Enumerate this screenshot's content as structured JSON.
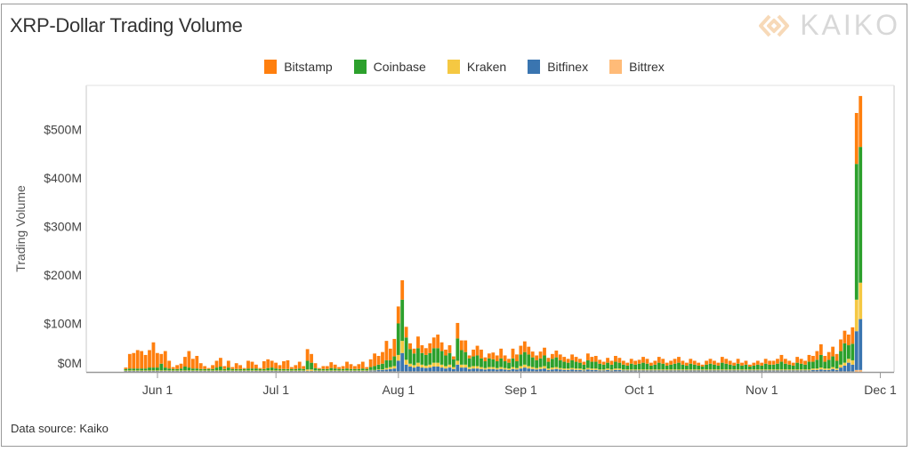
{
  "title": "XRP-Dollar Trading Volume",
  "logo_text": "KAIKO",
  "source": "Data source: Kaiko",
  "chart_data": {
    "type": "bar",
    "stacked": true,
    "title": "XRP-Dollar Trading Volume",
    "xlabel": "",
    "ylabel": "Trading Volume",
    "start_date": "May 24",
    "end_date": "Nov 26",
    "x_ticks": [
      {
        "label": "Jun 1",
        "day": 8
      },
      {
        "label": "Jul 1",
        "day": 38
      },
      {
        "label": "Aug 1",
        "day": 69
      },
      {
        "label": "Sep 1",
        "day": 100
      },
      {
        "label": "Oct 1",
        "day": 130
      },
      {
        "label": "Nov 1",
        "day": 161
      },
      {
        "label": "Dec 1",
        "day": 191
      }
    ],
    "y_ticks": [
      {
        "label": "$0M",
        "value": 0
      },
      {
        "label": "$100M",
        "value": 100
      },
      {
        "label": "$200M",
        "value": 200
      },
      {
        "label": "$300M",
        "value": 300
      },
      {
        "label": "$400M",
        "value": 400
      },
      {
        "label": "$500M",
        "value": 500
      }
    ],
    "ylim": [
      0,
      590
    ],
    "units": "USD millions",
    "legend_position": "top-center",
    "grid": false,
    "series": [
      {
        "name": "Bitstamp",
        "color": "#ff7f0e",
        "values": [
          3,
          30,
          32,
          38,
          36,
          28,
          36,
          52,
          30,
          20,
          34,
          16,
          4,
          8,
          10,
          20,
          34,
          20,
          26,
          12,
          6,
          2,
          8,
          14,
          18,
          6,
          14,
          4,
          12,
          8,
          2,
          16,
          14,
          8,
          2,
          16,
          18,
          14,
          12,
          8,
          16,
          18,
          4,
          8,
          14,
          6,
          24,
          18,
          10,
          2,
          6,
          6,
          12,
          8,
          4,
          6,
          14,
          10,
          6,
          10,
          14,
          4,
          16,
          26,
          18,
          24,
          40,
          24,
          36,
          35,
          40,
          22,
          12,
          10,
          24,
          16,
          14,
          20,
          22,
          28,
          18,
          12,
          16,
          6,
          32,
          20,
          24,
          6,
          14,
          20,
          18,
          8,
          10,
          14,
          12,
          20,
          12,
          8,
          20,
          14,
          18,
          22,
          16,
          12,
          10,
          14,
          16,
          8,
          10,
          14,
          12,
          10,
          8,
          12,
          10,
          8,
          6,
          14,
          10,
          12,
          8,
          6,
          10,
          8,
          12,
          10,
          8,
          6,
          10,
          8,
          8,
          12,
          10,
          6,
          8,
          12,
          10,
          6,
          8,
          10,
          12,
          8,
          6,
          10,
          8,
          6,
          4,
          8,
          10,
          8,
          6,
          12,
          10,
          8,
          6,
          10,
          6,
          8,
          4,
          6,
          8,
          6,
          10,
          8,
          8,
          10,
          14,
          10,
          8,
          6,
          12,
          10,
          8,
          14,
          12,
          18,
          22,
          12,
          16,
          20,
          14,
          24,
          26,
          22,
          34,
          105,
          105
        ]
      },
      {
        "name": "Coinbase",
        "color": "#2ca02c",
        "values": [
          3,
          4,
          4,
          4,
          4,
          4,
          6,
          6,
          6,
          14,
          6,
          4,
          3,
          3,
          4,
          8,
          6,
          4,
          4,
          3,
          3,
          3,
          3,
          6,
          8,
          3,
          6,
          3,
          3,
          3,
          3,
          4,
          4,
          4,
          3,
          3,
          5,
          6,
          4,
          3,
          3,
          3,
          3,
          3,
          4,
          3,
          18,
          14,
          5,
          3,
          3,
          3,
          5,
          4,
          3,
          3,
          4,
          3,
          3,
          3,
          4,
          3,
          6,
          8,
          10,
          12,
          16,
          14,
          20,
          65,
          85,
          46,
          30,
          24,
          30,
          24,
          22,
          24,
          30,
          30,
          28,
          22,
          24,
          16,
          46,
          30,
          26,
          18,
          20,
          22,
          18,
          14,
          18,
          16,
          14,
          18,
          14,
          12,
          18,
          14,
          24,
          26,
          24,
          20,
          16,
          18,
          22,
          14,
          18,
          20,
          16,
          14,
          12,
          16,
          14,
          12,
          10,
          16,
          14,
          14,
          12,
          10,
          12,
          10,
          14,
          12,
          10,
          8,
          12,
          10,
          12,
          14,
          12,
          8,
          10,
          14,
          12,
          8,
          10,
          12,
          14,
          10,
          8,
          12,
          10,
          8,
          6,
          10,
          12,
          10,
          8,
          14,
          12,
          10,
          8,
          12,
          8,
          10,
          6,
          8,
          10,
          8,
          12,
          10,
          10,
          12,
          16,
          12,
          10,
          8,
          14,
          12,
          10,
          16,
          14,
          18,
          26,
          14,
          18,
          22,
          16,
          28,
          40,
          28,
          34,
          280,
          280
        ]
      },
      {
        "name": "Kraken",
        "color": "#f5c842",
        "values": [
          1,
          1,
          1,
          1,
          1,
          1,
          1,
          1,
          1,
          1,
          1,
          1,
          1,
          1,
          1,
          1,
          1,
          1,
          1,
          1,
          1,
          1,
          1,
          1,
          1,
          1,
          1,
          1,
          1,
          1,
          1,
          1,
          1,
          1,
          1,
          1,
          1,
          1,
          1,
          1,
          1,
          1,
          1,
          1,
          1,
          1,
          3,
          3,
          1,
          1,
          1,
          1,
          1,
          1,
          1,
          1,
          1,
          1,
          1,
          1,
          1,
          1,
          1,
          1,
          1,
          1,
          3,
          4,
          5,
          12,
          25,
          10,
          6,
          5,
          8,
          6,
          5,
          6,
          8,
          8,
          6,
          5,
          6,
          4,
          8,
          6,
          6,
          4,
          5,
          5,
          4,
          3,
          4,
          4,
          3,
          4,
          3,
          3,
          4,
          3,
          5,
          6,
          5,
          4,
          3,
          4,
          5,
          3,
          4,
          4,
          3,
          3,
          3,
          3,
          3,
          3,
          2,
          3,
          3,
          3,
          2,
          2,
          3,
          2,
          3,
          3,
          2,
          2,
          2,
          2,
          2,
          2,
          2,
          2,
          2,
          2,
          2,
          2,
          2,
          2,
          2,
          2,
          2,
          2,
          2,
          2,
          2,
          2,
          2,
          2,
          2,
          2,
          2,
          2,
          2,
          2,
          2,
          2,
          2,
          2,
          2,
          2,
          2,
          2,
          2,
          2,
          2,
          2,
          2,
          2,
          2,
          2,
          2,
          2,
          3,
          3,
          4,
          3,
          3,
          4,
          3,
          6,
          6,
          8,
          9,
          65,
          75
        ]
      },
      {
        "name": "Bitfinex",
        "color": "#3a75b0",
        "values": [
          1,
          1,
          1,
          1,
          1,
          1,
          1,
          1,
          1,
          1,
          1,
          1,
          1,
          1,
          1,
          1,
          1,
          1,
          1,
          1,
          1,
          1,
          1,
          1,
          1,
          1,
          1,
          1,
          1,
          1,
          1,
          1,
          1,
          1,
          1,
          1,
          1,
          1,
          1,
          1,
          1,
          1,
          1,
          1,
          1,
          1,
          1,
          1,
          1,
          1,
          1,
          1,
          1,
          1,
          1,
          1,
          1,
          1,
          1,
          1,
          1,
          1,
          2,
          2,
          3,
          3,
          4,
          5,
          6,
          22,
          38,
          14,
          10,
          8,
          10,
          8,
          7,
          8,
          10,
          10,
          8,
          6,
          8,
          5,
          14,
          8,
          8,
          5,
          6,
          6,
          5,
          4,
          5,
          5,
          4,
          5,
          4,
          3,
          5,
          4,
          6,
          8,
          6,
          5,
          4,
          5,
          6,
          3,
          4,
          5,
          4,
          3,
          3,
          4,
          3,
          3,
          2,
          4,
          3,
          3,
          2,
          2,
          3,
          2,
          3,
          3,
          2,
          2,
          2,
          2,
          2,
          2,
          2,
          2,
          2,
          2,
          2,
          2,
          2,
          2,
          2,
          2,
          2,
          2,
          2,
          2,
          2,
          2,
          2,
          2,
          2,
          2,
          2,
          2,
          2,
          2,
          2,
          2,
          2,
          2,
          2,
          2,
          2,
          2,
          2,
          2,
          2,
          2,
          2,
          2,
          2,
          2,
          2,
          2,
          3,
          3,
          4,
          3,
          3,
          5,
          3,
          8,
          12,
          18,
          14,
          80,
          105
        ]
      },
      {
        "name": "Bittrex",
        "color": "#ffbb78",
        "values": [
          1,
          1,
          1,
          1,
          1,
          1,
          1,
          1,
          1,
          1,
          1,
          1,
          1,
          1,
          1,
          1,
          1,
          1,
          1,
          1,
          1,
          1,
          1,
          1,
          1,
          1,
          1,
          1,
          1,
          1,
          1,
          1,
          1,
          1,
          1,
          1,
          1,
          1,
          1,
          1,
          1,
          1,
          1,
          1,
          1,
          1,
          1,
          1,
          1,
          1,
          1,
          1,
          1,
          1,
          1,
          1,
          1,
          1,
          1,
          1,
          1,
          1,
          1,
          1,
          1,
          1,
          1,
          1,
          1,
          1,
          1,
          1,
          1,
          1,
          1,
          1,
          1,
          1,
          1,
          1,
          1,
          1,
          1,
          1,
          1,
          1,
          1,
          1,
          1,
          1,
          1,
          1,
          1,
          1,
          1,
          1,
          1,
          1,
          1,
          1,
          1,
          1,
          1,
          1,
          1,
          1,
          1,
          1,
          1,
          1,
          1,
          1,
          1,
          1,
          1,
          1,
          1,
          1,
          1,
          1,
          1,
          1,
          1,
          1,
          1,
          1,
          1,
          1,
          1,
          1,
          1,
          1,
          1,
          1,
          1,
          1,
          1,
          1,
          1,
          1,
          1,
          1,
          1,
          1,
          1,
          1,
          1,
          1,
          1,
          1,
          1,
          1,
          1,
          1,
          1,
          1,
          1,
          1,
          1,
          1,
          1,
          1,
          1,
          1,
          1,
          1,
          1,
          1,
          1,
          1,
          1,
          1,
          1,
          1,
          1,
          1,
          1,
          1,
          1,
          1,
          1,
          1,
          1,
          1,
          1,
          4,
          4
        ]
      }
    ]
  }
}
